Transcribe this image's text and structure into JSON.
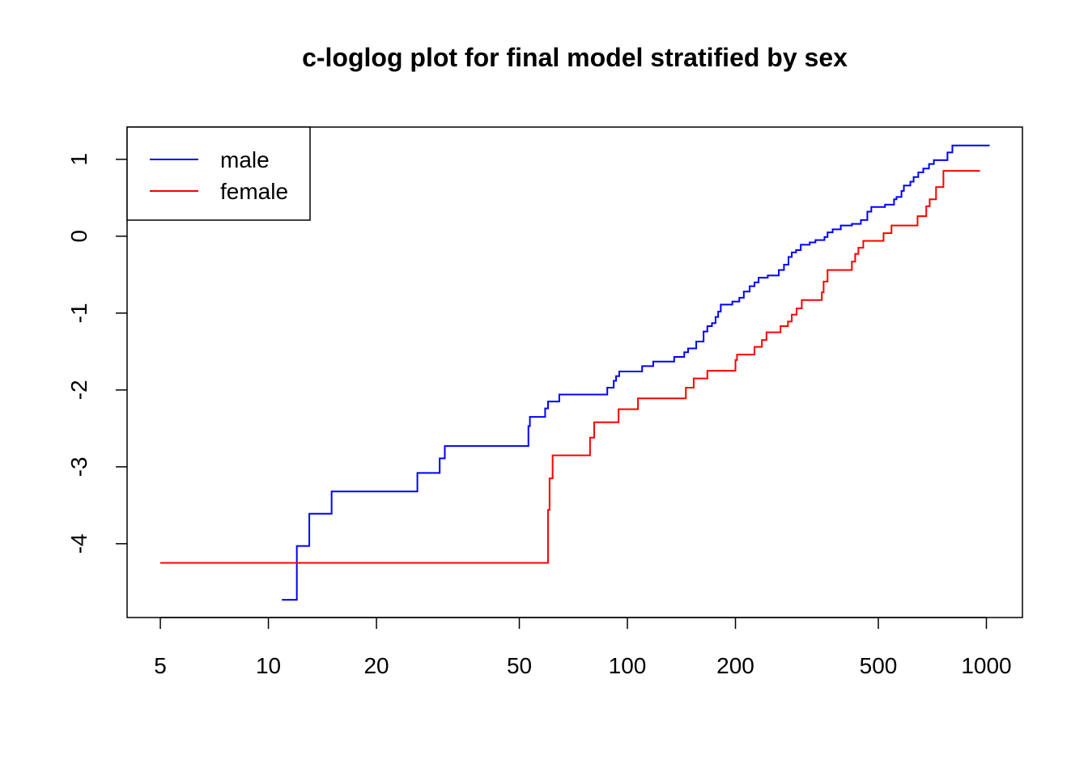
{
  "chart_data": {
    "type": "step",
    "title": "c-loglog plot for final model stratified by sex",
    "log_x": true,
    "xlim": [
      4.04,
      1260
    ],
    "xticks": [
      5,
      10,
      20,
      50,
      100,
      200,
      500,
      1000
    ],
    "ylim": [
      -4.96,
      1.42
    ],
    "yticks": [
      -4,
      -3,
      -2,
      -1,
      0,
      1
    ],
    "legend": "top-left",
    "series": [
      {
        "name": "male",
        "color": "#0000ff",
        "x": [
          10.9,
          12,
          13,
          15,
          26,
          30,
          31,
          53,
          53.5,
          59,
          60.1,
          64.6,
          87.9,
          91.6,
          93,
          94.9,
          109.9,
          118,
          135,
          144,
          147.6,
          155.5,
          163,
          167,
          172,
          176,
          179,
          182,
          196,
          205,
          211,
          219,
          226,
          232,
          246,
          264,
          273,
          281,
          287,
          295,
          304,
          322,
          334,
          354,
          361,
          373,
          393,
          422,
          447,
          466,
          478,
          522,
          553,
          562,
          580,
          589,
          614,
          627,
          646,
          667,
          692,
          714,
          779,
          804,
          1021
        ],
        "values": [
          -4.73,
          -4.03,
          -3.61,
          -3.32,
          -3.08,
          -2.89,
          -2.73,
          -2.47,
          -2.35,
          -2.24,
          -2.15,
          -2.06,
          -1.97,
          -1.88,
          -1.82,
          -1.76,
          -1.69,
          -1.63,
          -1.57,
          -1.51,
          -1.46,
          -1.37,
          -1.24,
          -1.17,
          -1.13,
          -1.05,
          -0.98,
          -0.89,
          -0.85,
          -0.8,
          -0.72,
          -0.65,
          -0.6,
          -0.54,
          -0.51,
          -0.44,
          -0.37,
          -0.27,
          -0.21,
          -0.18,
          -0.11,
          -0.08,
          -0.05,
          -0.01,
          0.05,
          0.09,
          0.14,
          0.16,
          0.21,
          0.32,
          0.38,
          0.41,
          0.48,
          0.51,
          0.59,
          0.66,
          0.71,
          0.77,
          0.83,
          0.88,
          0.94,
          0.99,
          1.09,
          1.18,
          1.18
        ]
      },
      {
        "name": "female",
        "color": "#ff0000",
        "x": [
          5,
          60.1,
          60.7,
          61.9,
          78.7,
          80.8,
          94.5,
          107,
          145.5,
          153,
          167,
          200,
          202,
          226,
          237,
          244,
          267,
          280,
          287,
          296,
          306,
          348,
          352,
          361,
          422,
          431,
          440,
          454,
          517,
          544,
          643,
          680,
          695,
          724,
          759,
          960
        ],
        "values": [
          -4.25,
          -3.56,
          -3.15,
          -2.85,
          -2.62,
          -2.42,
          -2.25,
          -2.11,
          -1.97,
          -1.85,
          -1.75,
          -1.61,
          -1.54,
          -1.44,
          -1.35,
          -1.25,
          -1.17,
          -1.11,
          -1.02,
          -0.94,
          -0.83,
          -0.73,
          -0.59,
          -0.44,
          -0.33,
          -0.23,
          -0.15,
          -0.06,
          0.04,
          0.14,
          0.26,
          0.39,
          0.48,
          0.64,
          0.85,
          0.85
        ]
      }
    ]
  }
}
